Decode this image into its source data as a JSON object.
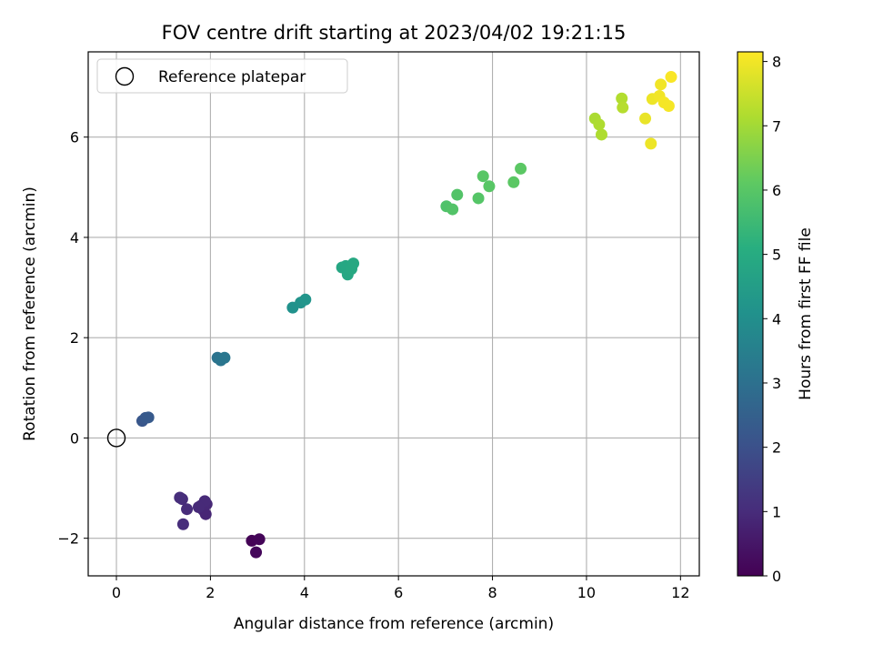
{
  "chart_data": {
    "type": "scatter",
    "title": "FOV centre drift starting at 2023/04/02 19:21:15",
    "xlabel": "Angular distance from reference (arcmin)",
    "ylabel": "Rotation from reference (arcmin)",
    "xlim": [
      -0.6,
      12.4
    ],
    "ylim": [
      -2.75,
      7.7
    ],
    "x_ticks": [
      0,
      2,
      4,
      6,
      8,
      10,
      12
    ],
    "y_ticks": [
      -2,
      0,
      2,
      4,
      6
    ],
    "grid": true,
    "legend": {
      "placement": "top-left",
      "entries": [
        "Reference platepar"
      ]
    },
    "reference_point": {
      "name": "Reference platepar",
      "x": 0,
      "y": 0
    },
    "colorbar": {
      "label": "Hours from first FF file",
      "range": [
        0,
        8.15
      ],
      "ticks": [
        0,
        1,
        2,
        3,
        4,
        5,
        6,
        7,
        8
      ],
      "colormap": "viridis"
    },
    "points": [
      {
        "x": 2.88,
        "y": -2.05,
        "c": 0.05
      },
      {
        "x": 3.04,
        "y": -2.02,
        "c": 0.1
      },
      {
        "x": 2.97,
        "y": -2.28,
        "c": 0.15
      },
      {
        "x": 1.9,
        "y": -1.52,
        "c": 0.85
      },
      {
        "x": 1.85,
        "y": -1.44,
        "c": 0.85
      },
      {
        "x": 1.8,
        "y": -1.35,
        "c": 0.9
      },
      {
        "x": 1.92,
        "y": -1.32,
        "c": 0.9
      },
      {
        "x": 1.88,
        "y": -1.26,
        "c": 0.95
      },
      {
        "x": 1.75,
        "y": -1.38,
        "c": 0.95
      },
      {
        "x": 1.5,
        "y": -1.42,
        "c": 1.0
      },
      {
        "x": 1.4,
        "y": -1.22,
        "c": 1.0
      },
      {
        "x": 1.35,
        "y": -1.19,
        "c": 1.05
      },
      {
        "x": 1.42,
        "y": -1.72,
        "c": 1.05
      },
      {
        "x": 0.55,
        "y": 0.34,
        "c": 2.2
      },
      {
        "x": 0.62,
        "y": 0.4,
        "c": 2.25
      },
      {
        "x": 0.68,
        "y": 0.41,
        "c": 2.3
      },
      {
        "x": 2.15,
        "y": 1.6,
        "c": 3.1
      },
      {
        "x": 2.22,
        "y": 1.55,
        "c": 3.15
      },
      {
        "x": 2.3,
        "y": 1.6,
        "c": 3.2
      },
      {
        "x": 3.75,
        "y": 2.6,
        "c": 4.1
      },
      {
        "x": 3.92,
        "y": 2.7,
        "c": 4.15
      },
      {
        "x": 4.02,
        "y": 2.76,
        "c": 4.2
      },
      {
        "x": 4.8,
        "y": 3.4,
        "c": 4.8
      },
      {
        "x": 4.88,
        "y": 3.43,
        "c": 4.85
      },
      {
        "x": 4.92,
        "y": 3.26,
        "c": 4.85
      },
      {
        "x": 5.0,
        "y": 3.37,
        "c": 4.9
      },
      {
        "x": 5.04,
        "y": 3.48,
        "c": 4.9
      },
      {
        "x": 7.02,
        "y": 4.62,
        "c": 5.85
      },
      {
        "x": 7.15,
        "y": 4.56,
        "c": 5.9
      },
      {
        "x": 7.25,
        "y": 4.85,
        "c": 5.9
      },
      {
        "x": 7.7,
        "y": 4.78,
        "c": 5.95
      },
      {
        "x": 7.8,
        "y": 5.22,
        "c": 6.0
      },
      {
        "x": 7.93,
        "y": 5.02,
        "c": 6.0
      },
      {
        "x": 8.45,
        "y": 5.1,
        "c": 6.05
      },
      {
        "x": 8.6,
        "y": 5.37,
        "c": 6.05
      },
      {
        "x": 10.18,
        "y": 6.37,
        "c": 7.1
      },
      {
        "x": 10.27,
        "y": 6.25,
        "c": 7.15
      },
      {
        "x": 10.32,
        "y": 6.05,
        "c": 7.15
      },
      {
        "x": 10.75,
        "y": 6.77,
        "c": 7.2
      },
      {
        "x": 10.77,
        "y": 6.59,
        "c": 7.25
      },
      {
        "x": 11.25,
        "y": 6.37,
        "c": 7.9
      },
      {
        "x": 11.37,
        "y": 5.87,
        "c": 7.95
      },
      {
        "x": 11.4,
        "y": 6.76,
        "c": 7.95
      },
      {
        "x": 11.55,
        "y": 6.82,
        "c": 8.0
      },
      {
        "x": 11.58,
        "y": 7.05,
        "c": 8.0
      },
      {
        "x": 11.65,
        "y": 6.69,
        "c": 8.05
      },
      {
        "x": 11.75,
        "y": 6.62,
        "c": 8.05
      },
      {
        "x": 11.8,
        "y": 7.2,
        "c": 8.1
      }
    ]
  }
}
